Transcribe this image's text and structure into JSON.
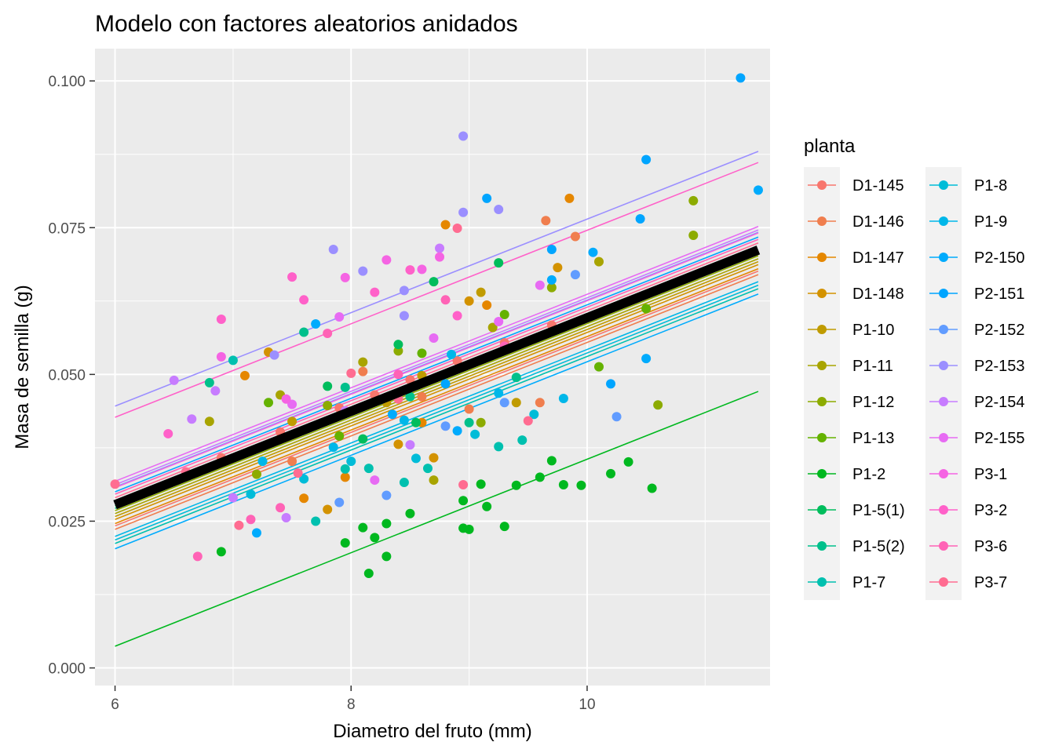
{
  "chart_data": {
    "type": "scatter",
    "title": "Modelo con factores aleatorios anidados",
    "xlabel": "Diametro del fruto (mm)",
    "ylabel": "Masa de semilla (g)",
    "xlim": [
      5.83,
      11.55
    ],
    "ylim": [
      -0.003,
      0.1055
    ],
    "x_ticks": [
      6,
      8,
      10
    ],
    "x_tick_labels": [
      "6",
      "8",
      "10"
    ],
    "y_ticks": [
      0.0,
      0.025,
      0.05,
      0.075,
      0.1
    ],
    "y_tick_labels": [
      "0.000",
      "0.025",
      "0.050",
      "0.075",
      "0.100"
    ],
    "grid": true,
    "legend": {
      "title": "planta",
      "position": "right",
      "columns": 2
    },
    "fixed_effect_line": {
      "x": [
        6.0,
        11.45
      ],
      "y": [
        0.0278,
        0.0712
      ],
      "color": "#000000"
    },
    "series": [
      {
        "name": "D1-145",
        "color": "#F8766D",
        "intercept_at_6": 0.0242,
        "points": [
          [
            6.9,
            0.0358
          ],
          [
            7.4,
            0.0402
          ],
          [
            7.9,
            0.0443
          ],
          [
            8.2,
            0.0465
          ],
          [
            8.5,
            0.0491
          ],
          [
            8.9,
            0.0523
          ],
          [
            9.3,
            0.0554
          ],
          [
            9.7,
            0.0584
          ]
        ]
      },
      {
        "name": "D1-146",
        "color": "#F07E4E",
        "intercept_at_6": 0.0236,
        "points": [
          [
            7.5,
            0.0352
          ],
          [
            8.1,
            0.0505
          ],
          [
            8.6,
            0.0462
          ],
          [
            9.0,
            0.0441
          ],
          [
            9.6,
            0.0452
          ],
          [
            9.9,
            0.0735
          ],
          [
            9.65,
            0.0762
          ]
        ]
      },
      {
        "name": "D1-147",
        "color": "#E58700",
        "intercept_at_6": 0.0246,
        "points": [
          [
            7.1,
            0.0498
          ],
          [
            7.6,
            0.0289
          ],
          [
            7.95,
            0.0325
          ],
          [
            8.6,
            0.0418
          ],
          [
            8.8,
            0.0755
          ],
          [
            9.15,
            0.0618
          ],
          [
            9.85,
            0.08
          ]
        ]
      },
      {
        "name": "D1-148",
        "color": "#D39200",
        "intercept_at_6": 0.0253,
        "points": [
          [
            7.3,
            0.0538
          ],
          [
            7.8,
            0.027
          ],
          [
            8.4,
            0.0381
          ],
          [
            8.7,
            0.0358
          ],
          [
            9.0,
            0.0625
          ],
          [
            9.75,
            0.0682
          ]
        ]
      },
      {
        "name": "P1-10",
        "color": "#C09B00",
        "intercept_at_6": 0.0258,
        "points": [
          [
            7.5,
            0.042
          ],
          [
            7.9,
            0.0395
          ],
          [
            8.3,
            0.0452
          ],
          [
            8.6,
            0.0498
          ],
          [
            9.1,
            0.064
          ],
          [
            9.4,
            0.0452
          ]
        ]
      },
      {
        "name": "P1-11",
        "color": "#A8A400",
        "intercept_at_6": 0.0263,
        "points": [
          [
            6.8,
            0.042
          ],
          [
            7.4,
            0.0465
          ],
          [
            8.1,
            0.0521
          ],
          [
            8.7,
            0.032
          ],
          [
            9.2,
            0.058
          ],
          [
            10.1,
            0.0692
          ]
        ]
      },
      {
        "name": "P1-12",
        "color": "#8CAB00",
        "intercept_at_6": 0.0268,
        "points": [
          [
            7.2,
            0.033
          ],
          [
            7.8,
            0.0447
          ],
          [
            8.4,
            0.054
          ],
          [
            9.1,
            0.0418
          ],
          [
            9.7,
            0.0648
          ],
          [
            10.6,
            0.0448
          ],
          [
            10.9,
            0.0796
          ],
          [
            10.9,
            0.0737
          ]
        ]
      },
      {
        "name": "P1-13",
        "color": "#64B200",
        "intercept_at_6": 0.0272,
        "points": [
          [
            7.3,
            0.0452
          ],
          [
            7.9,
            0.0395
          ],
          [
            8.6,
            0.0536
          ],
          [
            9.3,
            0.0602
          ],
          [
            10.1,
            0.0513
          ],
          [
            10.5,
            0.0612
          ]
        ]
      },
      {
        "name": "P1-2",
        "color": "#00B81F",
        "intercept_at_6": 0.0037,
        "points": [
          [
            6.9,
            0.0198
          ],
          [
            7.95,
            0.0213
          ],
          [
            8.1,
            0.0239
          ],
          [
            8.15,
            0.0161
          ],
          [
            8.2,
            0.0222
          ],
          [
            8.3,
            0.019
          ],
          [
            8.3,
            0.0246
          ],
          [
            8.5,
            0.0263
          ],
          [
            8.95,
            0.0238
          ],
          [
            9.0,
            0.0236
          ],
          [
            9.15,
            0.0275
          ],
          [
            9.3,
            0.0241
          ],
          [
            9.4,
            0.0311
          ],
          [
            9.6,
            0.0325
          ],
          [
            9.7,
            0.0353
          ],
          [
            9.8,
            0.0312
          ],
          [
            9.95,
            0.0311
          ],
          [
            10.2,
            0.0331
          ],
          [
            10.35,
            0.0351
          ],
          [
            10.55,
            0.0306
          ],
          [
            9.1,
            0.0313
          ],
          [
            8.95,
            0.0285
          ]
        ]
      },
      {
        "name": "P1-5(1)",
        "color": "#00BD5C",
        "intercept_at_6": 0.0276,
        "points": [
          [
            7.8,
            0.048
          ],
          [
            8.4,
            0.0551
          ],
          [
            8.7,
            0.0658
          ],
          [
            9.25,
            0.069
          ],
          [
            8.55,
            0.0418
          ],
          [
            8.1,
            0.039
          ]
        ]
      },
      {
        "name": "P1-5(2)",
        "color": "#00C08B",
        "intercept_at_6": 0.0272,
        "points": [
          [
            6.8,
            0.0486
          ],
          [
            7.6,
            0.0572
          ],
          [
            7.95,
            0.0478
          ],
          [
            8.5,
            0.0462
          ],
          [
            9.0,
            0.0418
          ],
          [
            9.4,
            0.0495
          ]
        ]
      },
      {
        "name": "P1-7",
        "color": "#00C0AF",
        "intercept_at_6": 0.0212,
        "points": [
          [
            7.0,
            0.0524
          ],
          [
            7.7,
            0.025
          ],
          [
            7.95,
            0.0339
          ],
          [
            8.15,
            0.034
          ],
          [
            8.45,
            0.0316
          ],
          [
            8.65,
            0.034
          ],
          [
            9.25,
            0.0377
          ],
          [
            9.45,
            0.0388
          ]
        ]
      },
      {
        "name": "P1-8",
        "color": "#00BCD8",
        "intercept_at_6": 0.0218,
        "points": [
          [
            7.15,
            0.0296
          ],
          [
            7.6,
            0.0322
          ],
          [
            8.0,
            0.0352
          ],
          [
            8.55,
            0.0357
          ],
          [
            9.05,
            0.0398
          ],
          [
            9.55,
            0.0432
          ]
        ]
      },
      {
        "name": "P1-9",
        "color": "#00B7E9",
        "intercept_at_6": 0.0224,
        "points": [
          [
            7.25,
            0.0352
          ],
          [
            7.85,
            0.0376
          ],
          [
            8.45,
            0.0422
          ],
          [
            8.85,
            0.0534
          ],
          [
            9.25,
            0.0468
          ],
          [
            9.8,
            0.0459
          ]
        ]
      },
      {
        "name": "P2-150",
        "color": "#00ABFD",
        "intercept_at_6": 0.0203,
        "points": [
          [
            7.2,
            0.023
          ],
          [
            7.7,
            0.0586
          ],
          [
            8.35,
            0.0432
          ],
          [
            8.9,
            0.0404
          ],
          [
            9.7,
            0.0661
          ],
          [
            10.05,
            0.0708
          ],
          [
            10.5,
            0.0527
          ],
          [
            11.45,
            0.0814
          ]
        ]
      },
      {
        "name": "P2-151",
        "color": "#00A5FF",
        "intercept_at_6": 0.03,
        "points": [
          [
            8.25,
            0.0457
          ],
          [
            8.8,
            0.0484
          ],
          [
            9.15,
            0.08
          ],
          [
            9.7,
            0.0713
          ],
          [
            10.2,
            0.0484
          ],
          [
            10.45,
            0.0765
          ],
          [
            10.5,
            0.0866
          ],
          [
            11.3,
            0.1005
          ]
        ]
      },
      {
        "name": "P2-152",
        "color": "#619CFF",
        "intercept_at_6": 0.0308,
        "points": [
          [
            7.9,
            0.0282
          ],
          [
            8.3,
            0.0294
          ],
          [
            8.8,
            0.0412
          ],
          [
            9.3,
            0.0452
          ],
          [
            10.25,
            0.0428
          ],
          [
            9.9,
            0.067
          ]
        ]
      },
      {
        "name": "P2-153",
        "color": "#9B8FFF",
        "intercept_at_6": 0.0446,
        "points": [
          [
            7.85,
            0.0713
          ],
          [
            8.1,
            0.0676
          ],
          [
            8.45,
            0.0643
          ],
          [
            8.95,
            0.0906
          ],
          [
            8.95,
            0.0776
          ],
          [
            9.25,
            0.0781
          ],
          [
            8.45,
            0.06
          ],
          [
            7.35,
            0.0533
          ]
        ]
      },
      {
        "name": "P2-154",
        "color": "#C77CFF",
        "intercept_at_6": 0.0312,
        "points": [
          [
            6.5,
            0.049
          ],
          [
            6.65,
            0.0424
          ],
          [
            6.85,
            0.0472
          ],
          [
            7.0,
            0.029
          ],
          [
            7.45,
            0.0256
          ],
          [
            7.95,
            0.0438
          ],
          [
            8.5,
            0.038
          ],
          [
            8.75,
            0.0715
          ]
        ]
      },
      {
        "name": "P2-155",
        "color": "#E76BF3",
        "intercept_at_6": 0.0318,
        "points": [
          [
            7.5,
            0.0449
          ],
          [
            7.9,
            0.0598
          ],
          [
            8.2,
            0.032
          ],
          [
            8.7,
            0.0562
          ],
          [
            9.25,
            0.059
          ],
          [
            9.6,
            0.0652
          ]
        ]
      },
      {
        "name": "P3-1",
        "color": "#F564E3",
        "intercept_at_6": 0.0307,
        "points": [
          [
            6.9,
            0.053
          ],
          [
            7.45,
            0.0458
          ],
          [
            7.95,
            0.0665
          ],
          [
            8.3,
            0.0695
          ],
          [
            8.6,
            0.0679
          ],
          [
            8.75,
            0.07
          ]
        ]
      },
      {
        "name": "P3-2",
        "color": "#FF61C9",
        "intercept_at_6": 0.0427,
        "points": [
          [
            6.45,
            0.0399
          ],
          [
            6.9,
            0.0594
          ],
          [
            7.5,
            0.0666
          ],
          [
            7.6,
            0.0627
          ],
          [
            8.2,
            0.064
          ],
          [
            8.5,
            0.0678
          ],
          [
            8.9,
            0.06
          ]
        ]
      },
      {
        "name": "P3-6",
        "color": "#FF63B6",
        "intercept_at_6": 0.0296,
        "points": [
          [
            6.7,
            0.019
          ],
          [
            7.15,
            0.0253
          ],
          [
            7.4,
            0.0273
          ],
          [
            7.8,
            0.057
          ],
          [
            8.4,
            0.05
          ],
          [
            8.8,
            0.0627
          ],
          [
            9.3,
            0.0548
          ]
        ]
      },
      {
        "name": "P3-7",
        "color": "#FF6C91",
        "intercept_at_6": 0.029,
        "points": [
          [
            6.0,
            0.0313
          ],
          [
            6.6,
            0.0334
          ],
          [
            7.05,
            0.0243
          ],
          [
            7.55,
            0.0332
          ],
          [
            8.0,
            0.0502
          ],
          [
            8.4,
            0.0458
          ],
          [
            8.9,
            0.0749
          ],
          [
            8.95,
            0.0312
          ],
          [
            9.5,
            0.0421
          ]
        ]
      }
    ]
  }
}
